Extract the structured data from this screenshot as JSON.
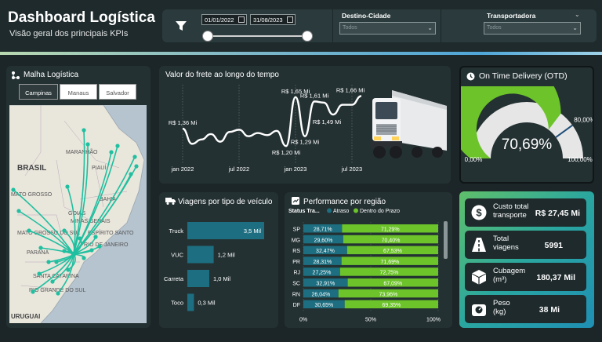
{
  "header": {
    "title": "Dashboard Logística",
    "subtitle": "Visão geral dos principais KPIs"
  },
  "filters": {
    "date_start": "01/01/2022",
    "date_end": "31/08/2023",
    "destino_label": "Destino-Cidade",
    "destino_value": "Todos",
    "transportadora_label": "Transportadora",
    "transportadora_value": "Todos"
  },
  "map_card": {
    "title": "Malha Logística",
    "tabs": [
      "Campinas",
      "Manaus",
      "Salvador"
    ],
    "selected_tab": "Campinas",
    "labels": {
      "country": "BRASIL",
      "country2": "URUGUAI",
      "states": [
        "MARANHÃO",
        "PIAUÍ",
        "BAHIA",
        "GOIÁS",
        "MINAS GERAIS",
        "ESPÍRITO SANTO",
        "MATO GROSSO",
        "MATO GROSSO DO SUL",
        "PARANÁ",
        "SANTA CATARINA",
        "RIO GRANDE DO SUL",
        "RIO DE JANEIRO"
      ]
    }
  },
  "freight_card": {
    "title": "Valor do frete ao longo do tempo"
  },
  "otd_card": {
    "title": "On Time Delivery (OTD)",
    "value_label": "70,69%",
    "value": 70.69,
    "target_label": "80,00%",
    "target": 80,
    "min_label": "0,00%",
    "max_label": "100,00%"
  },
  "vehicle_card": {
    "title": "Viagens por tipo de veículo"
  },
  "region_card": {
    "title": "Performance por região",
    "legend_title": "Status Tra...",
    "legend_atraso": "Atraso",
    "legend_prazo": "Dentro do Prazo"
  },
  "kpis": [
    {
      "label_line1": "Custo total",
      "label_line2": "transporte",
      "value": "R$ 27,45 Mi",
      "icon": "dollar-icon"
    },
    {
      "label_line1": "Total",
      "label_line2": "viagens",
      "value": "5991",
      "icon": "road-icon"
    },
    {
      "label_line1": "Cubagem",
      "label_line2": "(m³)",
      "value": "180,37 Mil",
      "icon": "cube-icon"
    },
    {
      "label_line1": "Peso",
      "label_line2": "(kg)",
      "value": "38 Mi",
      "icon": "weight-icon"
    }
  ],
  "colors": {
    "green": "#6cc32a",
    "teal": "#1d6e80",
    "card_bg": "#243133",
    "accent_blue": "#1f4e79"
  },
  "chart_data": [
    {
      "type": "line",
      "title": "Valor do frete ao longo do tempo",
      "x_tick_labels": [
        "jan 2022",
        "jul 2022",
        "jan 2023",
        "jul 2023"
      ],
      "points": [
        {
          "x": "jan 2022",
          "y": 1.36,
          "label": "R$ 1,36 Mi"
        },
        {
          "x": "fev 2022",
          "y": 1.22,
          "label": ""
        },
        {
          "x": "mar 2022",
          "y": 1.26,
          "label": ""
        },
        {
          "x": "abr 2022",
          "y": 1.31,
          "label": ""
        },
        {
          "x": "mai 2022",
          "y": 1.24,
          "label": ""
        },
        {
          "x": "jun 2022",
          "y": 1.33,
          "label": ""
        },
        {
          "x": "jul 2022",
          "y": 1.35,
          "label": ""
        },
        {
          "x": "ago 2022",
          "y": 1.29,
          "label": ""
        },
        {
          "x": "set 2022",
          "y": 1.32,
          "label": ""
        },
        {
          "x": "out 2022",
          "y": 1.3,
          "label": ""
        },
        {
          "x": "nov 2022",
          "y": 1.34,
          "label": ""
        },
        {
          "x": "dez 2022",
          "y": 1.2,
          "label": "R$ 1,20 Mi"
        },
        {
          "x": "jan 2023",
          "y": 1.65,
          "label": "R$ 1,65 Mi"
        },
        {
          "x": "fev 2023",
          "y": 1.29,
          "label": "R$ 1,29 Mi"
        },
        {
          "x": "mar 2023",
          "y": 1.61,
          "label": "R$ 1,61 Mi"
        },
        {
          "x": "abr 2023",
          "y": 1.6,
          "label": ""
        },
        {
          "x": "mai 2023",
          "y": 1.49,
          "label": "R$ 1,49 Mi"
        },
        {
          "x": "jun 2023",
          "y": 1.58,
          "label": ""
        },
        {
          "x": "jul 2023",
          "y": 1.58,
          "label": ""
        },
        {
          "x": "ago 2023",
          "y": 1.66,
          "label": "R$ 1,66 Mi"
        }
      ],
      "ylim": [
        1.1,
        1.75
      ]
    },
    {
      "type": "bar",
      "title": "Viagens por tipo de veículo",
      "categories": [
        "Truck",
        "VUC",
        "Carreta",
        "Toco"
      ],
      "values": [
        3.5,
        1.2,
        1.0,
        0.3
      ],
      "value_labels": [
        "3,5 Mil",
        "1,2 Mil",
        "1,0 Mil",
        "0,3 Mil"
      ],
      "unit": "Mil"
    },
    {
      "type": "bar",
      "title": "Performance por região",
      "orientation": "horizontal-stacked-100",
      "categories": [
        "SP",
        "MG",
        "RS",
        "PR",
        "RJ",
        "SC",
        "RN",
        "DF"
      ],
      "series": [
        {
          "name": "Atraso",
          "values": [
            28.71,
            29.6,
            32.47,
            28.31,
            27.25,
            32.91,
            26.04,
            30.65
          ]
        },
        {
          "name": "Dentro do Prazo",
          "values": [
            71.29,
            70.4,
            67.53,
            71.69,
            72.75,
            67.09,
            73.96,
            69.35
          ]
        }
      ],
      "x_tick_labels": [
        "0%",
        "50%",
        "100%"
      ]
    }
  ]
}
